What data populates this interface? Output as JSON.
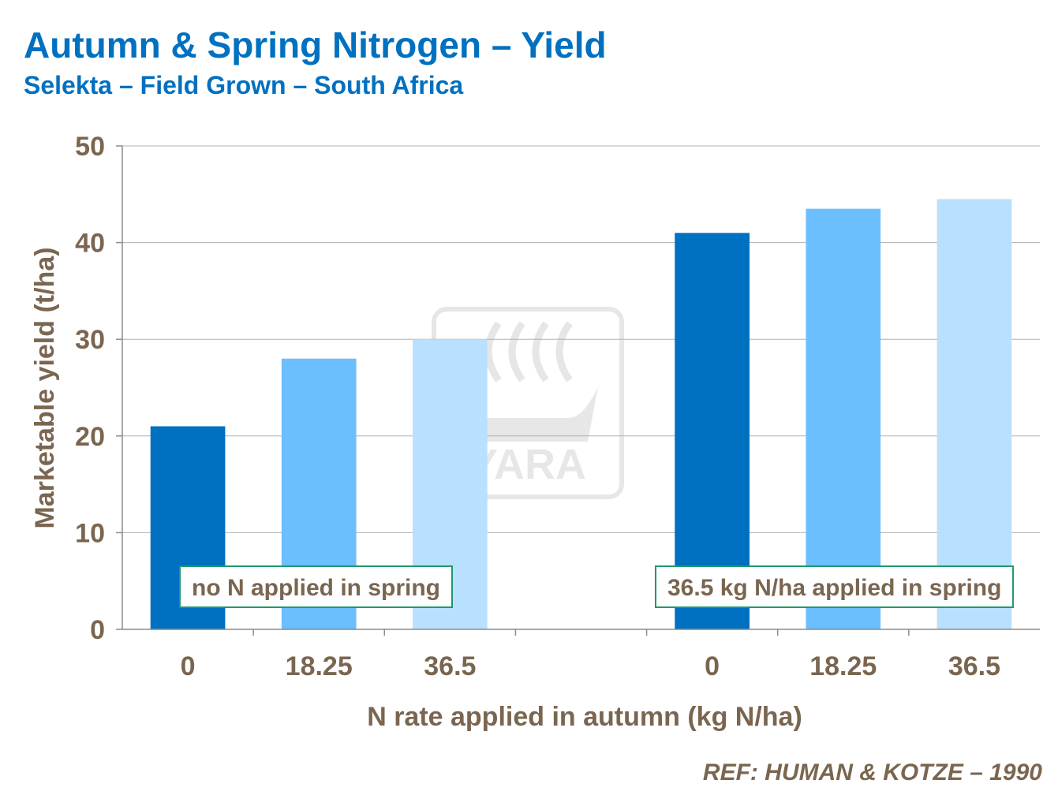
{
  "header": {
    "title": "Autumn & Spring Nitrogen – Yield",
    "subtitle": "Selekta – Field Grown – South Africa"
  },
  "reference": "REF:  HUMAN & KOTZE – 1990",
  "watermark": {
    "text": "YARA"
  },
  "colors": {
    "n_0": "#0070C0",
    "n_18_25": "#6BBFFF",
    "n_36_5": "#B9E0FF",
    "text": "#7A6650",
    "title": "#0070C0",
    "note_border": "#1E9A6B"
  },
  "chart_data": {
    "type": "bar",
    "title": "Autumn & Spring Nitrogen – Yield",
    "subtitle": "Selekta – Field Grown – South Africa",
    "xlabel": "N rate applied in autumn (kg N/ha)",
    "ylabel": "Marketable yield (t/ha)",
    "ylim": [
      0,
      50
    ],
    "yticks": [
      "0",
      "10",
      "20",
      "30",
      "40",
      "50"
    ],
    "grid": true,
    "groups": [
      {
        "label": "no N applied in spring",
        "categories": [
          "0",
          "18.25",
          "36.5"
        ],
        "values": [
          21,
          28,
          30
        ]
      },
      {
        "label": "36.5 kg N/ha applied in spring",
        "categories": [
          "0",
          "18.25",
          "36.5"
        ],
        "values": [
          41,
          43.5,
          44.5
        ]
      }
    ]
  }
}
